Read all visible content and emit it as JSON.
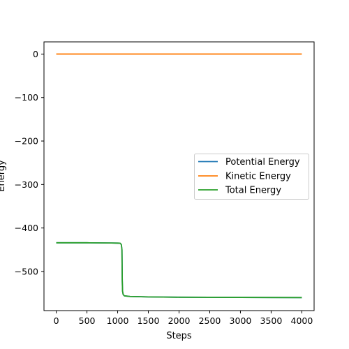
{
  "chart_data": {
    "type": "line",
    "title": "",
    "xlabel": "Steps",
    "ylabel": "Energy",
    "xlim": [
      -200,
      4200
    ],
    "ylim": [
      -590,
      28
    ],
    "xticks": [
      0,
      500,
      1000,
      1500,
      2000,
      2500,
      3000,
      3500,
      4000
    ],
    "yticks": [
      0,
      -100,
      -200,
      -300,
      -400,
      -500
    ],
    "ytick_labels": [
      "0",
      "−100",
      "−200",
      "−300",
      "−400",
      "−500"
    ],
    "grid": false,
    "legend_position": "center-right",
    "series": [
      {
        "name": "Potential Energy",
        "color": "#1f77b4",
        "points": [
          [
            0,
            -434
          ],
          [
            500,
            -434
          ],
          [
            900,
            -434.5
          ],
          [
            1000,
            -434.8
          ],
          [
            1040,
            -435
          ],
          [
            1060,
            -438
          ],
          [
            1070,
            -450
          ],
          [
            1075,
            -520
          ],
          [
            1080,
            -545
          ],
          [
            1090,
            -553
          ],
          [
            1110,
            -556
          ],
          [
            1200,
            -557.5
          ],
          [
            1500,
            -558.5
          ],
          [
            2000,
            -559.2
          ],
          [
            3000,
            -559.6
          ],
          [
            4000,
            -560
          ]
        ]
      },
      {
        "name": "Kinetic Energy",
        "color": "#ff7f0e",
        "points": [
          [
            0,
            0
          ],
          [
            1000,
            0
          ],
          [
            2000,
            0
          ],
          [
            3000,
            0
          ],
          [
            4000,
            0
          ]
        ]
      },
      {
        "name": "Total Energy",
        "color": "#2ca02c",
        "points": [
          [
            0,
            -434
          ],
          [
            500,
            -434
          ],
          [
            900,
            -434.5
          ],
          [
            1000,
            -434.8
          ],
          [
            1040,
            -435
          ],
          [
            1060,
            -438
          ],
          [
            1070,
            -450
          ],
          [
            1075,
            -520
          ],
          [
            1080,
            -545
          ],
          [
            1090,
            -553
          ],
          [
            1110,
            -556
          ],
          [
            1200,
            -557.5
          ],
          [
            1500,
            -558.5
          ],
          [
            2000,
            -559.2
          ],
          [
            3000,
            -559.6
          ],
          [
            4000,
            -560
          ]
        ]
      }
    ]
  }
}
